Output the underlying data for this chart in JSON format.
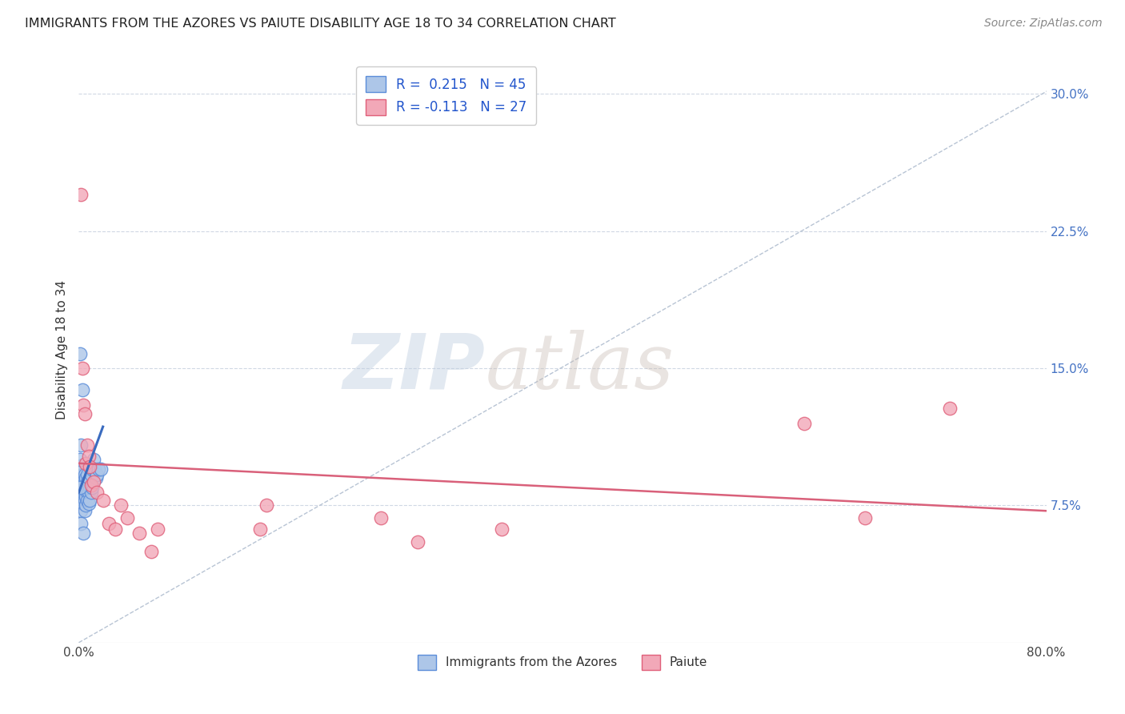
{
  "title": "IMMIGRANTS FROM THE AZORES VS PAIUTE DISABILITY AGE 18 TO 34 CORRELATION CHART",
  "source": "Source: ZipAtlas.com",
  "ylabel": "Disability Age 18 to 34",
  "ytick_labels": [
    "7.5%",
    "15.0%",
    "22.5%",
    "30.0%"
  ],
  "ytick_values": [
    0.075,
    0.15,
    0.225,
    0.3
  ],
  "xlim": [
    0.0,
    0.8
  ],
  "ylim": [
    0.0,
    0.32
  ],
  "blue_R": 0.215,
  "blue_N": 45,
  "pink_R": -0.113,
  "pink_N": 27,
  "blue_color": "#adc6e8",
  "pink_color": "#f2a8b8",
  "blue_edge_color": "#5b8dd9",
  "pink_edge_color": "#e0607a",
  "blue_line_color": "#3a6bbf",
  "pink_line_color": "#d9607a",
  "dashed_line_color": "#b8c4d4",
  "background_color": "#ffffff",
  "blue_x": [
    0.001,
    0.002,
    0.002,
    0.002,
    0.003,
    0.003,
    0.003,
    0.003,
    0.004,
    0.004,
    0.004,
    0.004,
    0.005,
    0.005,
    0.005,
    0.005,
    0.005,
    0.006,
    0.006,
    0.006,
    0.006,
    0.007,
    0.007,
    0.007,
    0.007,
    0.008,
    0.008,
    0.008,
    0.009,
    0.009,
    0.01,
    0.01,
    0.011,
    0.011,
    0.012,
    0.013,
    0.014,
    0.015,
    0.016,
    0.018,
    0.001,
    0.001,
    0.002,
    0.003,
    0.004
  ],
  "blue_y": [
    0.158,
    0.077,
    0.072,
    0.065,
    0.097,
    0.092,
    0.085,
    0.078,
    0.095,
    0.088,
    0.082,
    0.076,
    0.092,
    0.088,
    0.082,
    0.078,
    0.072,
    0.09,
    0.085,
    0.08,
    0.075,
    0.092,
    0.088,
    0.082,
    0.078,
    0.088,
    0.082,
    0.076,
    0.085,
    0.078,
    0.092,
    0.082,
    0.095,
    0.085,
    0.1,
    0.095,
    0.09,
    0.092,
    0.095,
    0.095,
    0.1,
    0.085,
    0.108,
    0.138,
    0.06
  ],
  "pink_x": [
    0.002,
    0.003,
    0.004,
    0.005,
    0.006,
    0.007,
    0.008,
    0.009,
    0.01,
    0.012,
    0.015,
    0.02,
    0.025,
    0.03,
    0.035,
    0.04,
    0.05,
    0.06,
    0.065,
    0.15,
    0.155,
    0.25,
    0.28,
    0.35,
    0.6,
    0.65,
    0.72
  ],
  "pink_y": [
    0.245,
    0.15,
    0.13,
    0.125,
    0.098,
    0.108,
    0.102,
    0.096,
    0.086,
    0.088,
    0.082,
    0.078,
    0.065,
    0.062,
    0.075,
    0.068,
    0.06,
    0.05,
    0.062,
    0.062,
    0.075,
    0.068,
    0.055,
    0.062,
    0.12,
    0.068,
    0.128
  ],
  "blue_trend_x0": 0.0,
  "blue_trend_x1": 0.02,
  "blue_trend_y0": 0.082,
  "blue_trend_y1": 0.118,
  "pink_trend_x0": 0.0,
  "pink_trend_x1": 0.8,
  "pink_trend_y0": 0.098,
  "pink_trend_y1": 0.072
}
